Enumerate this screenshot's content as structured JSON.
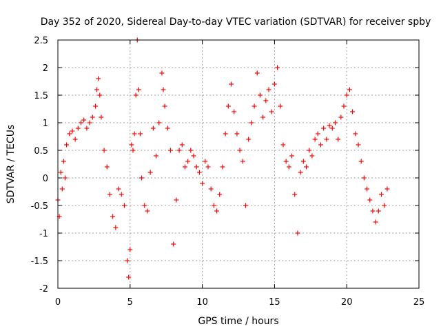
{
  "chart_data": {
    "type": "scatter",
    "title": "Day 352 of 2020, Sidereal Day-to-day VTEC variation (SDTVAR) for receiver spby",
    "xlabel": "GPS time / hours",
    "ylabel": "SDTVAR / TECUs",
    "xlim": [
      0,
      25
    ],
    "ylim": [
      -2,
      2.5
    ],
    "xticks": [
      0,
      5,
      10,
      15,
      20,
      25
    ],
    "yticks": [
      -2,
      -1.5,
      -1,
      -0.5,
      0,
      0.5,
      1,
      1.5,
      2,
      2.5
    ],
    "xtick_labels": [
      "0",
      "5",
      "10",
      "15",
      "20",
      "25"
    ],
    "ytick_labels": [
      "-2",
      "-1.5",
      "-1",
      "-0.5",
      "0",
      "0.5",
      "1",
      "1.5",
      "2",
      "2.5"
    ],
    "grid": true,
    "marker": "+",
    "color": "#ff0000",
    "series": [
      {
        "name": "SDTVAR",
        "x": [
          0.0,
          0.1,
          0.2,
          0.3,
          0.4,
          0.5,
          0.6,
          0.8,
          1.0,
          1.2,
          1.4,
          1.6,
          1.8,
          2.0,
          2.2,
          2.4,
          2.6,
          2.7,
          2.8,
          2.9,
          3.0,
          3.2,
          3.4,
          3.6,
          3.8,
          4.0,
          4.2,
          4.4,
          4.6,
          4.8,
          4.9,
          5.0,
          5.1,
          5.2,
          5.3,
          5.4,
          5.5,
          5.6,
          5.7,
          5.8,
          6.0,
          6.2,
          6.4,
          6.6,
          6.8,
          7.0,
          7.2,
          7.3,
          7.4,
          7.6,
          7.8,
          8.0,
          8.2,
          8.4,
          8.6,
          8.8,
          9.0,
          9.2,
          9.4,
          9.6,
          9.8,
          10.0,
          10.2,
          10.4,
          10.6,
          10.8,
          11.0,
          11.2,
          11.4,
          11.6,
          11.8,
          12.0,
          12.2,
          12.4,
          12.6,
          12.8,
          13.0,
          13.2,
          13.4,
          13.6,
          13.8,
          14.0,
          14.2,
          14.4,
          14.6,
          14.8,
          15.0,
          15.2,
          15.4,
          15.6,
          15.8,
          16.0,
          16.2,
          16.4,
          16.6,
          16.8,
          17.0,
          17.2,
          17.4,
          17.6,
          17.8,
          18.0,
          18.2,
          18.4,
          18.6,
          18.8,
          19.0,
          19.2,
          19.4,
          19.6,
          19.8,
          20.0,
          20.2,
          20.4,
          20.6,
          20.8,
          21.0,
          21.2,
          21.4,
          21.6,
          21.8,
          22.0,
          22.2,
          22.4,
          22.6,
          22.8
        ],
        "y": [
          -0.4,
          -0.7,
          0.1,
          -0.2,
          0.3,
          0.0,
          0.6,
          0.8,
          0.85,
          0.7,
          0.9,
          1.0,
          1.05,
          0.9,
          1.0,
          1.1,
          1.3,
          1.6,
          1.8,
          1.5,
          1.1,
          0.5,
          0.2,
          -0.3,
          -0.7,
          -0.9,
          -0.2,
          -0.3,
          -0.5,
          -1.5,
          -1.8,
          -1.3,
          0.6,
          0.5,
          0.8,
          1.5,
          2.5,
          1.6,
          0.8,
          0.0,
          -0.5,
          -0.6,
          0.1,
          0.9,
          0.4,
          1.0,
          1.9,
          1.6,
          1.3,
          0.9,
          0.5,
          -1.2,
          -0.4,
          0.5,
          0.6,
          0.2,
          0.3,
          0.5,
          0.4,
          0.2,
          0.1,
          -0.1,
          0.3,
          0.2,
          -0.2,
          -0.5,
          -0.6,
          -0.3,
          0.2,
          0.8,
          1.3,
          1.7,
          1.2,
          0.8,
          0.5,
          0.3,
          -0.5,
          0.7,
          1.0,
          1.3,
          1.9,
          1.5,
          1.1,
          1.4,
          1.6,
          1.2,
          1.7,
          2.0,
          1.3,
          0.6,
          0.3,
          0.2,
          0.4,
          -0.3,
          -1.0,
          0.1,
          0.3,
          0.2,
          0.5,
          0.4,
          0.7,
          0.8,
          0.6,
          0.9,
          0.7,
          0.95,
          0.9,
          1.0,
          0.7,
          1.1,
          1.3,
          1.5,
          1.6,
          1.2,
          0.8,
          0.6,
          0.3,
          0.0,
          -0.2,
          -0.4,
          -0.6,
          -0.8,
          -0.6,
          -0.3,
          -0.5,
          -0.2
        ]
      }
    ]
  }
}
